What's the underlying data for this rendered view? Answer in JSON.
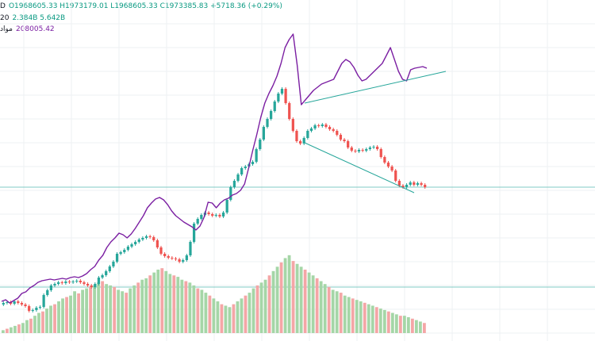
{
  "legend": {
    "symbol_tag": "D",
    "ohlc_text": "O1968605.33  H1973179.01  L1968605.33  C1973385.83  +5718.36 (+0.29%)",
    "volume_tag": "20",
    "volume_values": "2.384B  5.642B",
    "indicator_tag": "مواد",
    "indicator_value": "208005.42"
  },
  "colors": {
    "up": "#26a69a",
    "down": "#ef5350",
    "volume_up": "#a5d6a7",
    "volume_down": "#f4a6a6",
    "overlay_line": "#7b1fa2",
    "trendline": "#26a69a",
    "grid": "#eef0f3",
    "hline": "#80cbc4"
  },
  "chart_data": [
    {
      "type": "candlestick",
      "title": "",
      "ylabel": "",
      "xlabel": "",
      "y_range": [
        0,
        430
      ],
      "grid": true,
      "closes": [
        382,
        381,
        383,
        380,
        382,
        384,
        386,
        392,
        391,
        388,
        387,
        372,
        366,
        360,
        358,
        356,
        357,
        355,
        356,
        355,
        354,
        356,
        358,
        360,
        362,
        358,
        350,
        347,
        342,
        336,
        330,
        320,
        318,
        315,
        311,
        308,
        305,
        302,
        300,
        298,
        299,
        303,
        312,
        320,
        323,
        325,
        326,
        327,
        330,
        328,
        322,
        305,
        282,
        276,
        271,
        268,
        270,
        272,
        271,
        273,
        268,
        252,
        236,
        228,
        220,
        212,
        210,
        207,
        204,
        188,
        176,
        160,
        150,
        140,
        128,
        118,
        112,
        130,
        150,
        165,
        178,
        181,
        174,
        165,
        162,
        158,
        159,
        157,
        160,
        163,
        165,
        170,
        176,
        178,
        186,
        190,
        191,
        189,
        190,
        188,
        186,
        185,
        188,
        198,
        205,
        210,
        215,
        228,
        234,
        236,
        233,
        230,
        233,
        231,
        233,
        236
      ],
      "trendlines": [
        {
          "from": [
            384,
            130
          ],
          "to": [
            562,
            90
          ]
        },
        {
          "from": [
            384,
            180
          ],
          "to": [
            522,
            243
          ]
        }
      ],
      "horizontal_lines": [
        236,
        362
      ]
    },
    {
      "type": "line",
      "series": [
        {
          "values": [
            380,
            378,
            382,
            379,
            376,
            370,
            368,
            363,
            360,
            356,
            354,
            353,
            352,
            353,
            352,
            351,
            352,
            350,
            349,
            350,
            348,
            345,
            340,
            336,
            328,
            322,
            312,
            305,
            300,
            294,
            296,
            300,
            295,
            288,
            280,
            272,
            262,
            256,
            251,
            249,
            252,
            258,
            266,
            272,
            276,
            280,
            283,
            286,
            290,
            285,
            274,
            255,
            256,
            262,
            256,
            252,
            250,
            246,
            244,
            240,
            232,
            212,
            190,
            170,
            148,
            130,
            118,
            108,
            96,
            80,
            60,
            50,
            43,
            82,
            132,
            126,
            120,
            114,
            110,
            106,
            104,
            102,
            100,
            90,
            80,
            75,
            78,
            85,
            95,
            102,
            100,
            95,
            90,
            85,
            80,
            70,
            60,
            75,
            90,
            100,
            102,
            88,
            86,
            85,
            84,
            86
          ]
        }
      ],
      "y_range": [
        0,
        430
      ]
    },
    {
      "type": "bar",
      "name_hidden": true,
      "values": [
        4,
        6,
        8,
        10,
        12,
        14,
        18,
        20,
        24,
        28,
        30,
        34,
        38,
        40,
        44,
        48,
        50,
        52,
        58,
        55,
        60,
        62,
        64,
        66,
        70,
        72,
        68,
        66,
        64,
        60,
        58,
        56,
        62,
        66,
        70,
        74,
        76,
        80,
        84,
        88,
        90,
        86,
        82,
        80,
        78,
        74,
        72,
        70,
        66,
        62,
        60,
        56,
        52,
        48,
        44,
        40,
        38,
        36,
        40,
        44,
        48,
        52,
        56,
        62,
        66,
        70,
        74,
        80,
        86,
        92,
        98,
        104,
        108,
        100,
        96,
        92,
        88,
        84,
        80,
        76,
        72,
        68,
        64,
        60,
        58,
        56,
        52,
        50,
        48,
        46,
        44,
        42,
        40,
        38,
        36,
        34,
        32,
        30,
        28,
        26,
        24,
        24,
        22,
        20,
        18,
        16,
        14
      ],
      "y_range": [
        0,
        110
      ]
    }
  ]
}
